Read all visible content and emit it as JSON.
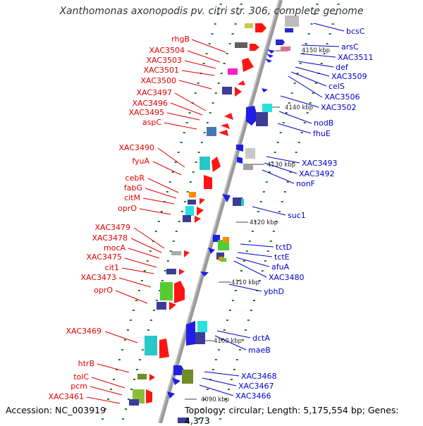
{
  "title": "Xanthomonas axonopodis pv. citri str. 306, complete genome",
  "accession": "Accession: NC_003919",
  "summary": "Topology: circular; Length: 5,175,554 bp; Genes: 4,373",
  "colors": {
    "left_label": "#e00000",
    "right_label": "#0000cc",
    "backbone": "#8c8c8c",
    "dots": "#1f7a1f"
  },
  "kbp_ticks": [
    "4150 kbp",
    "4140 kbp",
    "4130 kbp",
    "4120 kbp",
    "4110 kbp",
    "4100 kbp",
    "4090 kbp"
  ],
  "left_genes": [
    "rhgB",
    "XAC3504",
    "XAC3503",
    "XAC3501",
    "XAC3500",
    "XAC3497",
    "XAC3496",
    "XAC3495",
    "aspC",
    "XAC3490",
    "fyuA",
    "cebR",
    "fabG",
    "citM",
    "oprO",
    "XAC3479",
    "XAC3478",
    "mocA",
    "XAC3475",
    "cit1",
    "XAC3473",
    "oprO",
    "XAC3469",
    "htrB",
    "tolC",
    "pcm",
    "XAC3461"
  ],
  "right_genes": [
    "bcsC",
    "arsC",
    "XAC3511",
    "def",
    "XAC3509",
    "celS",
    "XAC3506",
    "XAC3502",
    "nodB",
    "fhuE",
    "XAC3493",
    "XAC3492",
    "nonF",
    "suc1",
    "tctD",
    "tctE",
    "afuA",
    "XAC3480",
    "ybhD",
    "dctA",
    "maeB",
    "XAC3468",
    "XAC3467",
    "XAC3466"
  ]
}
